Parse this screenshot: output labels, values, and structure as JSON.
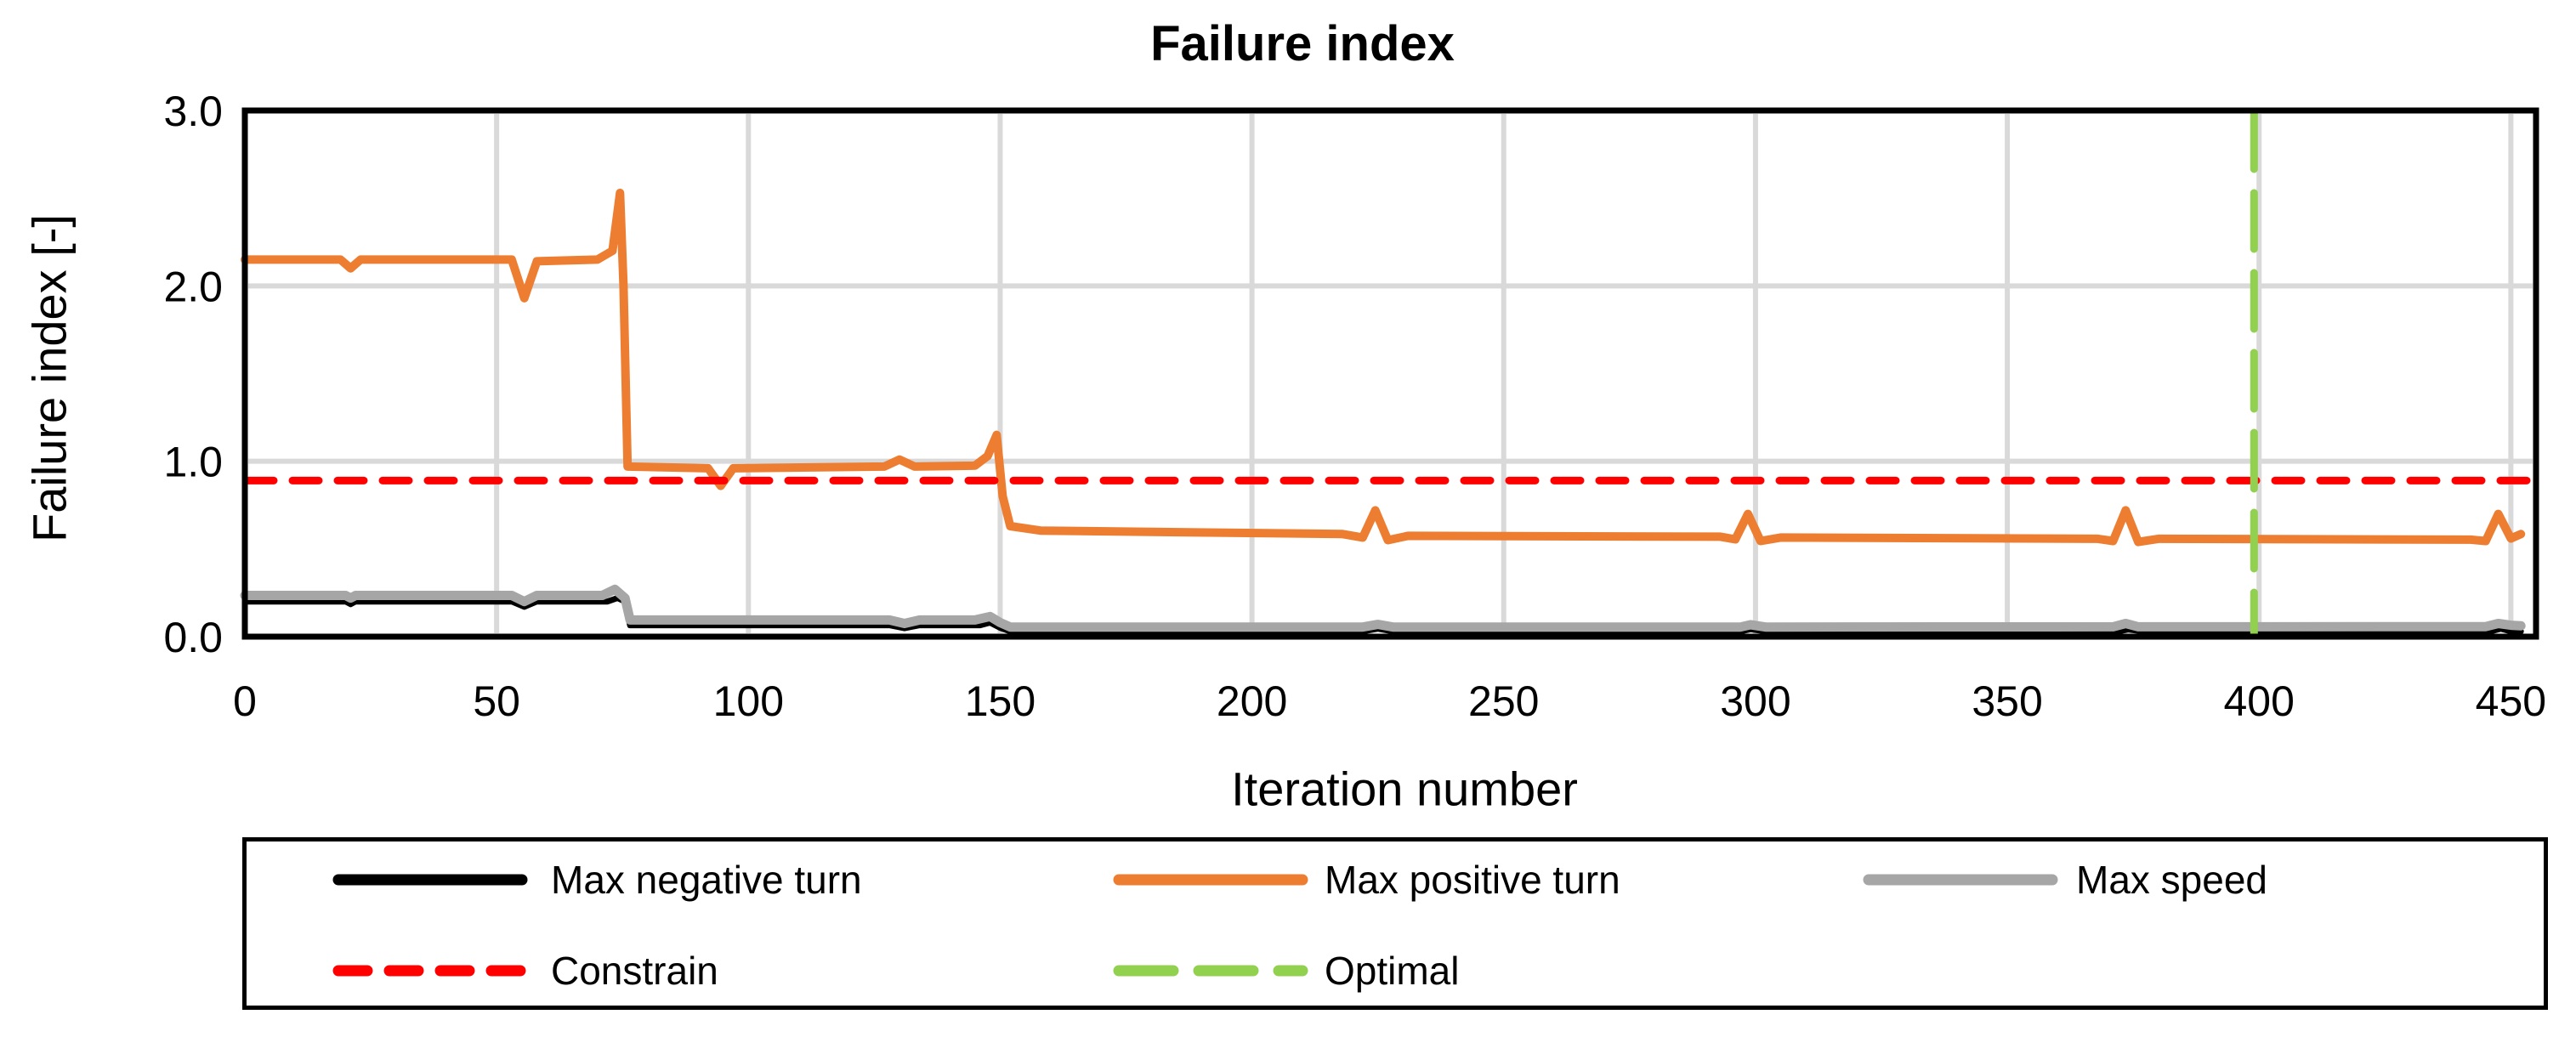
{
  "title": "Failure index",
  "axes": {
    "x_label": "Iteration number",
    "y_label": "Failure index [-]",
    "x_ticks": [
      {
        "v": 0,
        "label": "0"
      },
      {
        "v": 50,
        "label": "50"
      },
      {
        "v": 100,
        "label": "100"
      },
      {
        "v": 150,
        "label": "150"
      },
      {
        "v": 200,
        "label": "200"
      },
      {
        "v": 250,
        "label": "250"
      },
      {
        "v": 300,
        "label": "300"
      },
      {
        "v": 350,
        "label": "350"
      },
      {
        "v": 400,
        "label": "400"
      },
      {
        "v": 450,
        "label": "450"
      }
    ],
    "y_ticks": [
      {
        "v": 0,
        "label": "0.0"
      },
      {
        "v": 1,
        "label": "1.0"
      },
      {
        "v": 2,
        "label": "2.0"
      },
      {
        "v": 3,
        "label": "3.0"
      }
    ]
  },
  "colors": {
    "max_negative_turn": "#000000",
    "max_positive_turn": "#ED7D31",
    "max_speed": "#A6A6A6",
    "constrain": "#FF0000",
    "optimal": "#92D050",
    "gridline": "#D9D9D9",
    "axis_border": "#000000"
  },
  "legend": {
    "items": [
      {
        "label": "Max negative turn",
        "color": "#000000",
        "dash": "",
        "width": 13
      },
      {
        "label": "Max positive turn",
        "color": "#ED7D31",
        "dash": "",
        "width": 13
      },
      {
        "label": "Max speed",
        "color": "#A6A6A6",
        "dash": "",
        "width": 13
      },
      {
        "label": "Constrain",
        "color": "#FF0000",
        "dash": "34 26",
        "width": 13
      },
      {
        "label": "Optimal",
        "color": "#92D050",
        "dash": "64 30",
        "width": 13
      }
    ]
  },
  "chart_data": {
    "type": "line",
    "title": "Failure index",
    "xlabel": "Iteration number",
    "ylabel": "Failure index [-]",
    "x_range": [
      0,
      455
    ],
    "y_range": [
      0,
      3
    ],
    "grid": true,
    "x_gridlines": [
      50,
      100,
      150,
      200,
      250,
      300,
      350,
      400,
      450
    ],
    "y_gridlines": [
      1,
      2
    ],
    "legend_position": "bottom",
    "series": [
      {
        "name": "Max negative turn",
        "color": "#000000",
        "stroke_width": 7,
        "points": [
          [
            0,
            0.2
          ],
          [
            20,
            0.2
          ],
          [
            21,
            0.185
          ],
          [
            22,
            0.2
          ],
          [
            53,
            0.2
          ],
          [
            55.5,
            0.17
          ],
          [
            58,
            0.2
          ],
          [
            72,
            0.2
          ],
          [
            74,
            0.22
          ],
          [
            75.5,
            0.2
          ],
          [
            76.5,
            0.065
          ],
          [
            128,
            0.065
          ],
          [
            131,
            0.048
          ],
          [
            134,
            0.065
          ],
          [
            146,
            0.065
          ],
          [
            148,
            0.08
          ],
          [
            150,
            0.05
          ],
          [
            152,
            0.03
          ],
          [
            222,
            0.03
          ],
          [
            225,
            0.045
          ],
          [
            228,
            0.03
          ],
          [
            297,
            0.03
          ],
          [
            299,
            0.042
          ],
          [
            302,
            0.03
          ],
          [
            372,
            0.03
          ],
          [
            374,
            0.04
          ],
          [
            377,
            0.03
          ],
          [
            446,
            0.03
          ],
          [
            448,
            0.045
          ],
          [
            450,
            0.03
          ],
          [
            452,
            0.03
          ]
        ]
      },
      {
        "name": "Max speed",
        "color": "#A6A6A6",
        "stroke_width": 11,
        "points": [
          [
            0,
            0.235
          ],
          [
            20,
            0.235
          ],
          [
            21,
            0.22
          ],
          [
            22,
            0.235
          ],
          [
            53,
            0.235
          ],
          [
            55.5,
            0.2
          ],
          [
            58,
            0.235
          ],
          [
            71,
            0.235
          ],
          [
            73.5,
            0.27
          ],
          [
            75.5,
            0.22
          ],
          [
            76.5,
            0.095
          ],
          [
            128,
            0.095
          ],
          [
            131,
            0.075
          ],
          [
            134,
            0.095
          ],
          [
            145,
            0.095
          ],
          [
            148,
            0.115
          ],
          [
            150,
            0.08
          ],
          [
            152,
            0.055
          ],
          [
            222,
            0.055
          ],
          [
            225,
            0.07
          ],
          [
            228,
            0.055
          ],
          [
            297,
            0.055
          ],
          [
            299,
            0.068
          ],
          [
            302,
            0.055
          ],
          [
            371,
            0.056
          ],
          [
            373.5,
            0.075
          ],
          [
            376,
            0.056
          ],
          [
            445,
            0.057
          ],
          [
            447.5,
            0.075
          ],
          [
            450,
            0.065
          ],
          [
            452,
            0.062
          ]
        ]
      },
      {
        "name": "Max positive turn",
        "color": "#ED7D31",
        "stroke_width": 10,
        "points": [
          [
            0,
            2.15
          ],
          [
            19,
            2.15
          ],
          [
            21,
            2.1
          ],
          [
            23,
            2.15
          ],
          [
            53,
            2.15
          ],
          [
            55.5,
            1.93
          ],
          [
            58,
            2.14
          ],
          [
            70,
            2.15
          ],
          [
            73,
            2.2
          ],
          [
            74.5,
            2.53
          ],
          [
            75.2,
            2.0
          ],
          [
            76,
            0.97
          ],
          [
            92,
            0.96
          ],
          [
            94.5,
            0.86
          ],
          [
            97,
            0.96
          ],
          [
            127,
            0.97
          ],
          [
            130,
            1.01
          ],
          [
            133,
            0.97
          ],
          [
            145,
            0.975
          ],
          [
            147.5,
            1.03
          ],
          [
            149.3,
            1.15
          ],
          [
            150.5,
            0.8
          ],
          [
            152,
            0.63
          ],
          [
            158,
            0.605
          ],
          [
            218,
            0.585
          ],
          [
            222,
            0.565
          ],
          [
            224.5,
            0.72
          ],
          [
            227,
            0.55
          ],
          [
            231,
            0.575
          ],
          [
            293,
            0.57
          ],
          [
            296,
            0.555
          ],
          [
            298.5,
            0.7
          ],
          [
            301,
            0.545
          ],
          [
            305,
            0.565
          ],
          [
            368,
            0.558
          ],
          [
            371,
            0.545
          ],
          [
            373.5,
            0.72
          ],
          [
            376,
            0.54
          ],
          [
            380,
            0.558
          ],
          [
            442,
            0.553
          ],
          [
            445,
            0.545
          ],
          [
            447.5,
            0.7
          ],
          [
            450,
            0.56
          ],
          [
            452,
            0.585
          ]
        ]
      }
    ],
    "constrain_line": {
      "name": "Constrain",
      "y": 0.89,
      "color": "#FF0000",
      "dash": "31 22",
      "stroke_width": 9
    },
    "optimal_line": {
      "name": "Optimal",
      "x": 399,
      "color": "#92D050",
      "dash": "66 28",
      "stroke_width": 9
    }
  }
}
